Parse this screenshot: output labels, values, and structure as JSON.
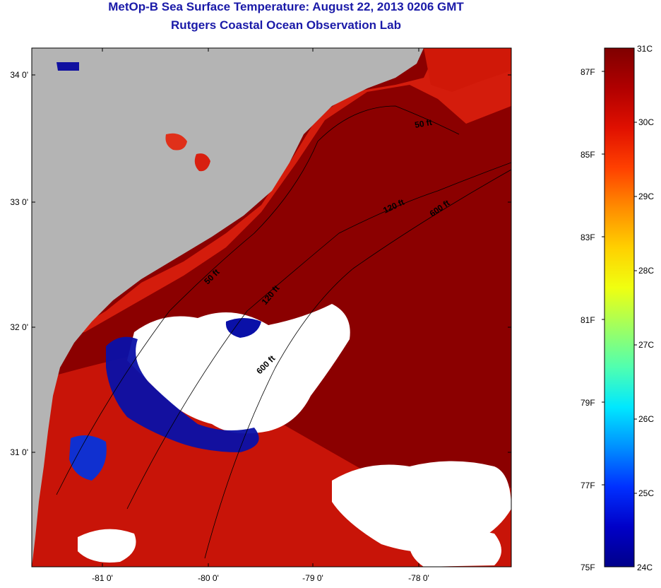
{
  "header": {
    "title": "MetOp-B Sea Surface Temperature:  August 22, 2013 0206 GMT",
    "subtitle": "Rutgers Coastal Ocean Observation Lab"
  },
  "map": {
    "latitude_ticks": [
      "34 0'",
      "33 0'",
      "32 0'",
      "31 0'"
    ],
    "longitude_ticks": [
      "-81 0'",
      "-80 0'",
      "-79 0'",
      "-78 0'"
    ],
    "contour_labels": [
      "50 ft",
      "120 ft",
      "600 ft",
      "50 ft",
      "120 ft",
      "600 ft"
    ],
    "colors": {
      "land": "#b4b4b4",
      "cloud": "#ffffff",
      "warm_water": "#8b0000",
      "mid_water": "#d41c0c",
      "cool_water": "#0a10a8"
    }
  },
  "colorbar": {
    "celsius_labels": [
      "31C",
      "30C",
      "29C",
      "28C",
      "27C",
      "26C",
      "25C",
      "24C"
    ],
    "fahrenheit_labels": [
      "87F",
      "85F",
      "83F",
      "81F",
      "79F",
      "77F",
      "75F"
    ],
    "gradient": [
      "#7f0000",
      "#b00000",
      "#e01000",
      "#ff4000",
      "#ff8c00",
      "#ffd000",
      "#f0ff10",
      "#a0ff60",
      "#50ffb0",
      "#00e8ff",
      "#0090ff",
      "#0030ff",
      "#0000c8",
      "#00008a"
    ]
  }
}
